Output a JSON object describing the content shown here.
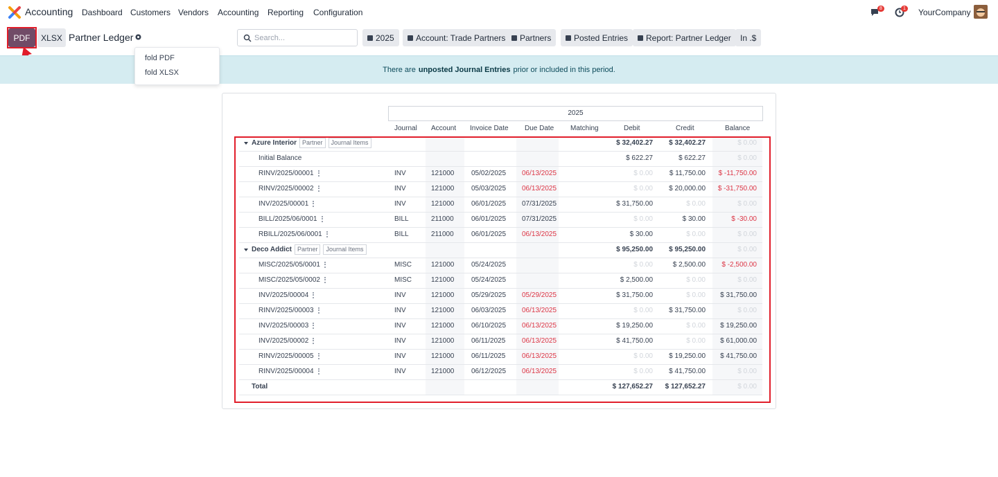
{
  "navbar": {
    "app": "Accounting",
    "menu": [
      "Dashboard",
      "Customers",
      "Vendors",
      "Accounting",
      "Reporting",
      "Configuration"
    ],
    "messages_badge": "8",
    "activity_badge": "1",
    "company": "YourCompany"
  },
  "control_panel": {
    "buttons": [
      "PDF",
      "XLSX"
    ],
    "title": "Partner Ledger",
    "search_placeholder": "Search...",
    "filters": [
      "2025",
      "Account: Trade Partners",
      "Partners",
      "Posted Entries",
      "Report: Partner Ledger",
      "In .$"
    ],
    "dropdown": [
      "fold PDF",
      "fold XLSX"
    ]
  },
  "alert": {
    "before": "There are",
    "strong": "unposted Journal Entries",
    "after": "prior or included in this period."
  },
  "table": {
    "period": "2025",
    "columns": [
      "Journal",
      "Account",
      "Invoice Date",
      "Due Date",
      "Matching",
      "Debit",
      "Credit",
      "Balance"
    ],
    "groups": [
      {
        "name": "Azure Interior",
        "tags": [
          "Partner",
          "Journal Items"
        ],
        "debit": "$ 32,402.27",
        "credit": "$ 32,402.27",
        "balance": "$ 0.00",
        "lines": [
          {
            "name": "Initial Balance",
            "journal": null,
            "account": null,
            "invoice_date": null,
            "due_date": null,
            "due_overdue": false,
            "debit": "$ 622.27",
            "credit": "$ 622.27",
            "balance": "$ 0.00"
          },
          {
            "name": "RINV/2025/00001",
            "journal": "INV",
            "account": "121000",
            "invoice_date": "05/02/2025",
            "due_date": "06/13/2025",
            "due_overdue": true,
            "debit": "$ 0.00",
            "credit": "$ 11,750.00",
            "balance": "$ -11,750.00"
          },
          {
            "name": "RINV/2025/00002",
            "journal": "INV",
            "account": "121000",
            "invoice_date": "05/03/2025",
            "due_date": "06/13/2025",
            "due_overdue": true,
            "debit": "$ 0.00",
            "credit": "$ 20,000.00",
            "balance": "$ -31,750.00"
          },
          {
            "name": "INV/2025/00001",
            "journal": "INV",
            "account": "121000",
            "invoice_date": "06/01/2025",
            "due_date": "07/31/2025",
            "due_overdue": false,
            "debit": "$ 31,750.00",
            "credit": "$ 0.00",
            "balance": "$ 0.00"
          },
          {
            "name": "BILL/2025/06/0001",
            "journal": "BILL",
            "account": "211000",
            "invoice_date": "06/01/2025",
            "due_date": "07/31/2025",
            "due_overdue": false,
            "debit": "$ 0.00",
            "credit": "$ 30.00",
            "balance": "$ -30.00"
          },
          {
            "name": "RBILL/2025/06/0001",
            "journal": "BILL",
            "account": "211000",
            "invoice_date": "06/01/2025",
            "due_date": "06/13/2025",
            "due_overdue": true,
            "debit": "$ 30.00",
            "credit": "$ 0.00",
            "balance": "$ 0.00"
          }
        ]
      },
      {
        "name": "Deco Addict",
        "tags": [
          "Partner",
          "Journal Items"
        ],
        "debit": "$ 95,250.00",
        "credit": "$ 95,250.00",
        "balance": "$ 0.00",
        "lines": [
          {
            "name": "MISC/2025/05/0001",
            "journal": "MISC",
            "account": "121000",
            "invoice_date": "05/24/2025",
            "due_date": null,
            "due_overdue": false,
            "debit": "$ 0.00",
            "credit": "$ 2,500.00",
            "balance": "$ -2,500.00"
          },
          {
            "name": "MISC/2025/05/0002",
            "journal": "MISC",
            "account": "121000",
            "invoice_date": "05/24/2025",
            "due_date": null,
            "due_overdue": false,
            "debit": "$ 2,500.00",
            "credit": "$ 0.00",
            "balance": "$ 0.00"
          },
          {
            "name": "INV/2025/00004",
            "journal": "INV",
            "account": "121000",
            "invoice_date": "05/29/2025",
            "due_date": "05/29/2025",
            "due_overdue": true,
            "debit": "$ 31,750.00",
            "credit": "$ 0.00",
            "balance": "$ 31,750.00"
          },
          {
            "name": "RINV/2025/00003",
            "journal": "INV",
            "account": "121000",
            "invoice_date": "06/03/2025",
            "due_date": "06/13/2025",
            "due_overdue": true,
            "debit": "$ 0.00",
            "credit": "$ 31,750.00",
            "balance": "$ 0.00"
          },
          {
            "name": "INV/2025/00003",
            "journal": "INV",
            "account": "121000",
            "invoice_date": "06/10/2025",
            "due_date": "06/13/2025",
            "due_overdue": true,
            "debit": "$ 19,250.00",
            "credit": "$ 0.00",
            "balance": "$ 19,250.00"
          },
          {
            "name": "INV/2025/00002",
            "journal": "INV",
            "account": "121000",
            "invoice_date": "06/11/2025",
            "due_date": "06/13/2025",
            "due_overdue": true,
            "debit": "$ 41,750.00",
            "credit": "$ 0.00",
            "balance": "$ 61,000.00"
          },
          {
            "name": "RINV/2025/00005",
            "journal": "INV",
            "account": "121000",
            "invoice_date": "06/11/2025",
            "due_date": "06/13/2025",
            "due_overdue": true,
            "debit": "$ 0.00",
            "credit": "$ 19,250.00",
            "balance": "$ 41,750.00"
          },
          {
            "name": "RINV/2025/00004",
            "journal": "INV",
            "account": "121000",
            "invoice_date": "06/12/2025",
            "due_date": "06/13/2025",
            "due_overdue": true,
            "debit": "$ 0.00",
            "credit": "$ 41,750.00",
            "balance": "$ 0.00"
          }
        ]
      }
    ],
    "total": {
      "label": "Total",
      "debit": "$ 127,652.27",
      "credit": "$ 127,652.27",
      "balance": "$ 0.00"
    }
  }
}
